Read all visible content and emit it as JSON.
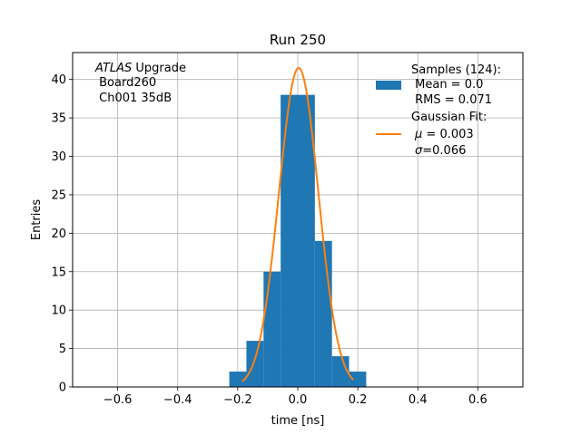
{
  "chart_data": {
    "type": "bar",
    "title": "Run 250",
    "xlabel": "time [ns]",
    "ylabel": "Entries",
    "xlim": [
      -0.75,
      0.75
    ],
    "ylim": [
      0,
      43.5
    ],
    "grid": true,
    "x_ticks": [
      -0.6,
      -0.4,
      -0.2,
      0.0,
      0.2,
      0.4,
      0.6
    ],
    "x_tick_labels": [
      "−0.6",
      "−0.4",
      "−0.2",
      "0.0",
      "0.2",
      "0.4",
      "0.6"
    ],
    "y_ticks": [
      0,
      5,
      10,
      15,
      20,
      25,
      30,
      35,
      40
    ],
    "y_tick_labels": [
      "0",
      "5",
      "10",
      "15",
      "20",
      "25",
      "30",
      "35",
      "40"
    ],
    "bin_edges": [
      -0.228,
      -0.171,
      -0.114,
      -0.057,
      0.0,
      0.057,
      0.114,
      0.171,
      0.228
    ],
    "histogram_values": [
      2,
      6,
      15,
      38,
      38,
      19,
      4,
      2
    ],
    "histogram_color": "#1f77b4",
    "fit": {
      "mu": 0.003,
      "sigma": 0.066,
      "amplitude": 41.5,
      "x_range": [
        -0.185,
        0.185
      ],
      "color": "#ff7f0e"
    },
    "annotation": {
      "line1_italic": "ATLAS",
      "line1_rest": " Upgrade",
      "line2": " Board260",
      "line3": " Ch001 35dB"
    },
    "legend": {
      "position": "top-right",
      "samples": {
        "line1": "Samples (124):",
        "line2": " Mean = 0.0",
        "line3": " RMS = 0.071"
      },
      "fit": {
        "line1": "Gaussian Fit:",
        "mu_symbol": "μ",
        "mu_text": " = 0.003",
        "sigma_symbol": "σ",
        "sigma_text": "=0.066"
      }
    }
  }
}
